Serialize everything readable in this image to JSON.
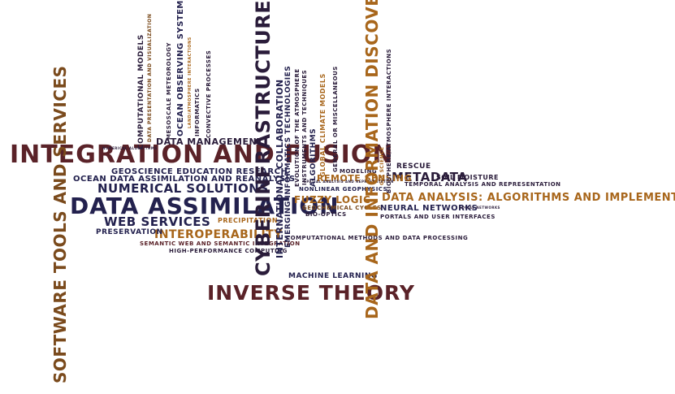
{
  "words": {
    "integration": "INTEGRATION AND FUSION",
    "data_assim": "DATA ASSIMILATION",
    "inverse": "INVERSE THEORY",
    "cyber": "CYBERINFRASTRUCTURE",
    "data_info": "DATA AND INFORMATION DISCOVERY",
    "software": "SOFTWARE TOOLS AND SERVICES",
    "numerical": "NUMERICAL SOLUTIONS",
    "web": "WEB SERVICES",
    "interop": "INTEROPERABILITY",
    "data_analysis": "DATA ANALYSIS: ALGORITHMS AND IMPLEMENTATION",
    "metadata": "METADATA",
    "geoscience": "GEOSCIENCE EDUCATION RESEARCH",
    "ocean_reanal": "OCEAN DATA ASSIMILATION AND REANALYSIS",
    "data_mgmt": "DATA MANAGEMENT",
    "preservation": "PRESERVATION",
    "semantic": "SEMANTIC WEB AND SEMANTIC INTEGRATION",
    "hpc": "HIGH-PERFORMANCE COMPUTING",
    "comp_methods": "COMPUTATIONAL METHODS AND DATA PROCESSING",
    "machine": "MACHINE LEARNING",
    "fuzzy": "FUZZY LOGIC",
    "remote": "REMOTE SENSING",
    "neural": "NEURAL NETWORKS",
    "portals": "PORTALS AND USER INTERFACES",
    "temporal": "TEMPORAL ANALYSIS AND REPRESENTATION",
    "soil": "SOIL MOISTURE",
    "rescue": "RESCUE",
    "nonlinear": "NONLINEAR GEOPHYSICS",
    "geochem": "GEOCHEMICAL CYCLES",
    "bio_optics": "BIO-OPTICS",
    "precip": "PRECIPITATION",
    "intl_collab": "INTERNATIONAL COLLABORATION",
    "emerging": "EMERGING INFORMATICS TECHNOLOGIES",
    "ocean_obs": "OCEAN OBSERVING SYSTEMS",
    "comp_models": "COMPUTATIONAL MODELS",
    "data_pres_vis": "DATA PRESENTATION AND VISUALIZATION",
    "mesoscale": "MESOSCALE METEOROLOGY",
    "land_atm": "LAND/ATMOSPHERE INTERACTIONS",
    "informatics": "INFORMATICS",
    "convective": "CONVECTIVE PROCESSES",
    "evolution_atm": "EVOLUTION OF THE ATMOSPHERE",
    "instruments": "INSTRUMENTS AND TECHNIQUES",
    "algorithms": "ALGORITHMS",
    "global_climate": "GLOBAL CLIMATE MODELS",
    "general_misc": "GENERAL OR MISCELLANEOUS",
    "modeling": "MODELING",
    "gis": "GIS SCIENCE",
    "biosphere": "BIOSPHERE/ATMOSPHERE INTERACTIONS",
    "numerical_alg": "NUMERICAL ALGORITHMS",
    "spatial": "SPATIAL ANALYSIS AND REPRESENTATION",
    "social": "SOCIAL NETWORKS"
  },
  "colors": {
    "dark": "#2a1c3a",
    "navy": "#23214e",
    "red": "#5a2228",
    "gold": "#a8661b",
    "brown": "#7a4a1c",
    "background": "#ffffff"
  }
}
